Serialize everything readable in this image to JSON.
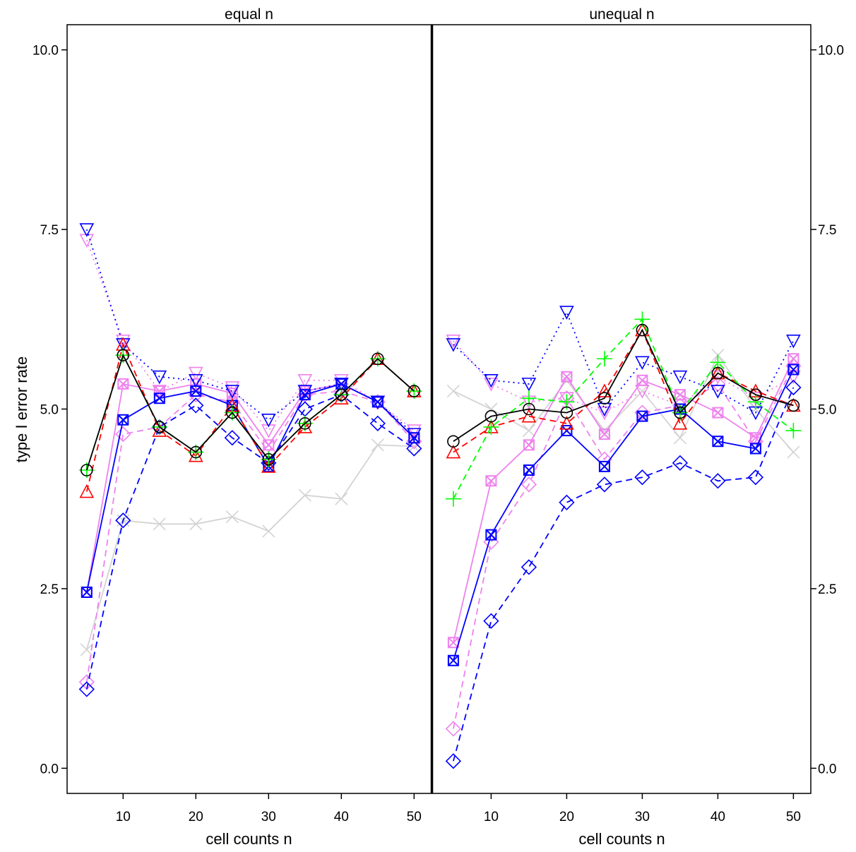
{
  "chart_data": {
    "type": "line",
    "ylabel": "type I error rate",
    "ylim": [
      -0.35,
      10.35
    ],
    "xlim": [
      2.3,
      52.3
    ],
    "yticks": [
      0.0,
      2.5,
      5.0,
      7.5,
      10.0
    ],
    "ytick_labels": [
      "0.0",
      "2.5",
      "5.0",
      "7.5",
      "10.0"
    ],
    "xticks": [
      10,
      20,
      30,
      40,
      50
    ],
    "xtick_labels": [
      "10",
      "20",
      "30",
      "40",
      "50"
    ],
    "grid": false,
    "legend": "none",
    "x": [
      5,
      10,
      15,
      20,
      25,
      30,
      35,
      40,
      45,
      50
    ],
    "series_styles": [
      {
        "color": "#d3d3d3",
        "dash": "solid",
        "marker": "x"
      },
      {
        "color": "#ee82ee",
        "dash": "solid",
        "marker": "boxx"
      },
      {
        "color": "#ee82ee",
        "dash": "dash",
        "marker": "diamond"
      },
      {
        "color": "#ee82ee",
        "dash": "dot",
        "marker": "tridown"
      },
      {
        "color": "#0000ff",
        "dash": "solid",
        "marker": "boxx"
      },
      {
        "color": "#0000ff",
        "dash": "dash",
        "marker": "diamond"
      },
      {
        "color": "#0000ff",
        "dash": "dot",
        "marker": "tridown"
      },
      {
        "color": "#ff0000",
        "dash": "dash",
        "marker": "triup"
      },
      {
        "color": "#00ff00",
        "dash": "dash",
        "marker": "plus"
      },
      {
        "color": "#000000",
        "dash": "solid",
        "marker": "circle"
      }
    ],
    "panels": [
      {
        "title": "equal n",
        "xlabel": "cell counts n",
        "series_values": [
          [
            1.65,
            3.45,
            3.4,
            3.4,
            3.5,
            3.3,
            3.8,
            3.75,
            4.5,
            4.48
          ],
          [
            2.45,
            5.35,
            5.25,
            5.35,
            5.22,
            4.5,
            5.25,
            5.35,
            5.1,
            4.6
          ],
          [
            1.2,
            4.65,
            4.75,
            5.2,
            5.1,
            4.4,
            5.2,
            5.25,
            5.1,
            4.55
          ],
          [
            7.35,
            5.95,
            5.25,
            5.5,
            5.3,
            4.7,
            5.4,
            5.4,
            5.1,
            4.7
          ],
          [
            2.45,
            4.85,
            5.15,
            5.25,
            5.05,
            4.2,
            5.2,
            5.35,
            5.1,
            4.6
          ],
          [
            1.1,
            3.45,
            4.75,
            5.05,
            4.6,
            4.25,
            5.0,
            5.2,
            4.8,
            4.45
          ],
          [
            7.5,
            5.9,
            5.45,
            5.4,
            5.25,
            4.85,
            5.25,
            5.35,
            5.1,
            4.65
          ],
          [
            3.85,
            5.9,
            4.7,
            4.35,
            5.05,
            4.2,
            4.75,
            5.15,
            5.7,
            5.25
          ],
          [
            4.15,
            5.75,
            4.75,
            4.4,
            4.95,
            4.3,
            4.8,
            5.2,
            5.7,
            5.25
          ],
          [
            4.15,
            5.75,
            4.75,
            4.4,
            4.95,
            4.3,
            4.8,
            5.2,
            5.7,
            5.25
          ]
        ]
      },
      {
        "title": "unequal n",
        "xlabel": "cell counts n",
        "series_values": [
          [
            5.25,
            5.0,
            4.7,
            5.4,
            4.7,
            5.25,
            4.6,
            5.75,
            5.0,
            4.4
          ],
          [
            1.75,
            4.0,
            4.5,
            5.45,
            4.65,
            5.4,
            5.2,
            4.95,
            4.6,
            5.7
          ],
          [
            0.55,
            3.15,
            3.95,
            5.15,
            4.3,
            4.95,
            5.05,
            5.35,
            4.55,
            5.6
          ],
          [
            5.95,
            5.35,
            5.1,
            5.15,
            4.95,
            5.25,
            5.05,
            5.45,
            5.15,
            5.45
          ],
          [
            1.5,
            3.25,
            4.15,
            4.7,
            4.2,
            4.9,
            5.0,
            4.55,
            4.45,
            5.55
          ],
          [
            0.1,
            2.05,
            2.8,
            3.7,
            3.95,
            4.05,
            4.25,
            4.0,
            4.05,
            5.3
          ],
          [
            5.9,
            5.4,
            5.35,
            6.35,
            5.0,
            5.65,
            5.45,
            5.25,
            4.95,
            5.95
          ],
          [
            4.4,
            4.75,
            4.9,
            4.8,
            5.25,
            6.1,
            4.8,
            5.5,
            5.25,
            5.05
          ],
          [
            3.75,
            4.75,
            5.15,
            5.1,
            5.7,
            6.25,
            4.95,
            5.65,
            5.1,
            4.7
          ],
          [
            4.55,
            4.9,
            5.0,
            4.95,
            5.15,
            6.1,
            4.95,
            5.5,
            5.2,
            5.05
          ]
        ]
      }
    ]
  }
}
